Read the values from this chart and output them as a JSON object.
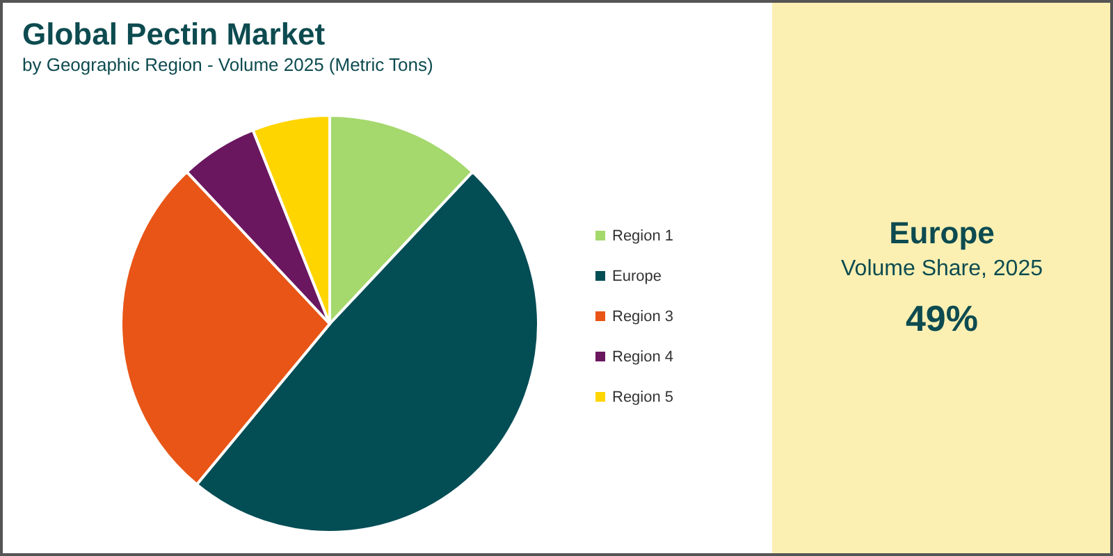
{
  "chart_data": {
    "type": "pie",
    "title": "Global Pectin Market",
    "subtitle": "by Geographic Region - Volume 2025 (Metric Tons)",
    "categories": [
      "Region 1",
      "Europe",
      "Region 3",
      "Region 4",
      "Region 5"
    ],
    "values": [
      12,
      49,
      27,
      6,
      6
    ],
    "colors": [
      "#a5d86d",
      "#034d55",
      "#e85516",
      "#6a1760",
      "#ffd500"
    ],
    "legend": "right",
    "annotations": [
      "Europe",
      "Volume Share, 2025",
      "49%"
    ]
  }
}
